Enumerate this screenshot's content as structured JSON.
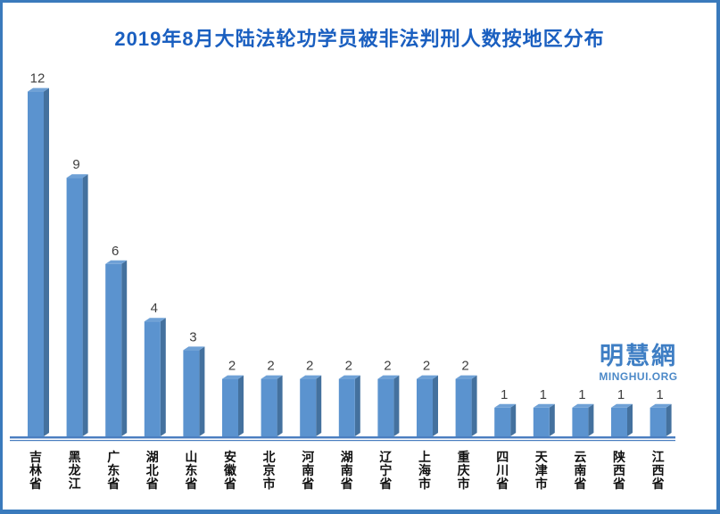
{
  "chart_data": {
    "type": "bar",
    "style": "3d-column",
    "title": "2019年8月大陆法轮功学员被非法判刑人数按地区分布",
    "categories": [
      "吉林省",
      "黑龙江",
      "广东省",
      "湖北省",
      "山东省",
      "安徽省",
      "北京市",
      "河南省",
      "湖南省",
      "辽宁省",
      "上海市",
      "重庆市",
      "四川省",
      "天津市",
      "云南省",
      "陕西省",
      "江西省"
    ],
    "values": [
      12,
      9,
      6,
      4,
      3,
      2,
      2,
      2,
      2,
      2,
      2,
      2,
      1,
      1,
      1,
      1,
      1
    ],
    "xlabel": "",
    "ylabel": "",
    "ylim": [
      0,
      13
    ],
    "yaxis_visible": false,
    "grid": false,
    "legend": "none",
    "value_labels_shown": true,
    "colors": {
      "bar_face": "#5b93cf",
      "bar_top": "#6fa1d6",
      "bar_side": "#44719e",
      "axis_line": "#4a7ec0",
      "title_text": "#1a5fc0",
      "value_label_text": "#3f3f3f",
      "category_label_text": "#111111",
      "frame_border": "#3a7abc"
    }
  },
  "watermark": {
    "brand": "明慧網",
    "domain": "MINGHUI.ORG"
  }
}
